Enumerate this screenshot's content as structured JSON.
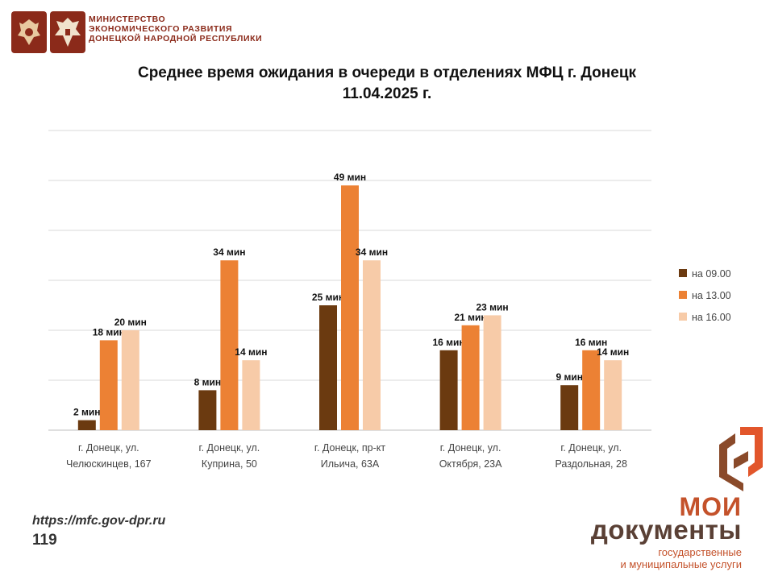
{
  "header": {
    "ministry_line1": "МИНИСТЕРСТВО",
    "ministry_line2": "ЭКОНОМИЧЕСКОГО РАЗВИТИЯ",
    "ministry_line3": "ДОНЕЦКОЙ НАРОДНОЙ РЕСПУБЛИКИ",
    "emblem_1_icon": "coat-of-arms-icon",
    "emblem_2_icon": "coat-of-arms-icon"
  },
  "chart_data": {
    "type": "bar",
    "title": "Среднее время ожидания в очереди в отделениях МФЦ г. Донецк",
    "subtitle": "11.04.2025 г.",
    "categories": [
      [
        "г. Донецк, ул.",
        "Челюскинцев, 167"
      ],
      [
        "г. Донецк, ул.",
        "Куприна, 50"
      ],
      [
        "г. Донецк, пр-кт",
        "Ильича, 63А"
      ],
      [
        "г. Донецк, ул.",
        "Октября, 23А"
      ],
      [
        "г. Донецк, ул.",
        "Раздольная, 28"
      ]
    ],
    "series": [
      {
        "name": "на 09.00",
        "color": "#6b3a10",
        "values": [
          2,
          8,
          25,
          16,
          9
        ]
      },
      {
        "name": "на 13.00",
        "color": "#ec8134",
        "values": [
          18,
          34,
          49,
          21,
          16
        ]
      },
      {
        "name": "на 16.00",
        "color": "#f7cba8",
        "values": [
          20,
          14,
          34,
          23,
          14
        ]
      }
    ],
    "value_suffix": " мин",
    "ylim": [
      0,
      60
    ],
    "grid": true,
    "legend": "right"
  },
  "footer": {
    "url": "https://mfc.gov-dpr.ru",
    "page": "119",
    "brand_line1": "МОИ",
    "brand_line2": "документы",
    "brand_sub1": "государственные",
    "brand_sub2": "и муниципальные услуги",
    "brand_icon": "moi-dokumenty-logo-icon",
    "brand_colors": {
      "primary": "#c4522b",
      "secondary": "#5a4035"
    }
  }
}
